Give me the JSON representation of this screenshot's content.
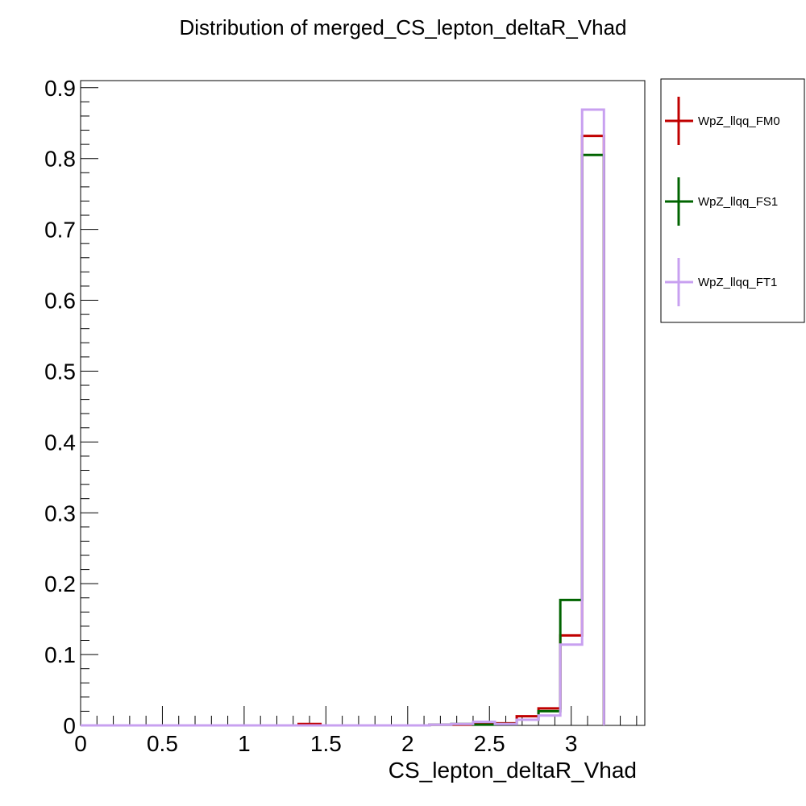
{
  "chart_data": {
    "type": "histogram",
    "title": "Distribution of merged_CS_lepton_deltaR_Vhad",
    "xlabel": "CS_lepton_deltaR_Vhad",
    "ylabel": "",
    "xlim": [
      0,
      3.45
    ],
    "ylim": [
      0,
      0.91
    ],
    "bin_edges": [
      0.0,
      0.1333,
      0.2667,
      0.4,
      0.5333,
      0.6667,
      0.8,
      0.9333,
      1.0667,
      1.2,
      1.3333,
      1.4667,
      1.6,
      1.7333,
      1.8667,
      2.0,
      2.1333,
      2.2667,
      2.4,
      2.5333,
      2.6667,
      2.8,
      2.9333,
      3.0667,
      3.2
    ],
    "xticks": [
      "0",
      "0.5",
      "1",
      "1.5",
      "2",
      "2.5",
      "3"
    ],
    "xtick_values": [
      0,
      0.5,
      1,
      1.5,
      2,
      2.5,
      3
    ],
    "yticks": [
      "0",
      "0.1",
      "0.2",
      "0.3",
      "0.4",
      "0.5",
      "0.6",
      "0.7",
      "0.8",
      "0.9"
    ],
    "ytick_values": [
      0,
      0.1,
      0.2,
      0.3,
      0.4,
      0.5,
      0.6,
      0.7,
      0.8,
      0.9
    ],
    "grid": false,
    "legend_position": "right",
    "series": [
      {
        "name": "WpZ_llqq_FM0",
        "color": "#c00000",
        "values": [
          0,
          0,
          0,
          0,
          0,
          0,
          0,
          0,
          0,
          0,
          0.002,
          0,
          0,
          0,
          0,
          0,
          0.001,
          0.001,
          0.002,
          0.003,
          0.013,
          0.024,
          0.127,
          0.832
        ]
      },
      {
        "name": "WpZ_llqq_FS1",
        "color": "#006400",
        "values": [
          0,
          0,
          0,
          0,
          0,
          0,
          0,
          0,
          0,
          0,
          0,
          0,
          0,
          0,
          0,
          0,
          0.001,
          0.002,
          0.001,
          0.002,
          0.008,
          0.02,
          0.177,
          0.805
        ]
      },
      {
        "name": "WpZ_llqq_FT1",
        "color": "#c8a0f0",
        "values": [
          0,
          0,
          0,
          0,
          0,
          0,
          0,
          0,
          0,
          0,
          0,
          0,
          0,
          0,
          0,
          0,
          0.001,
          0.002,
          0.005,
          0.002,
          0.008,
          0.014,
          0.114,
          0.869
        ]
      }
    ]
  }
}
